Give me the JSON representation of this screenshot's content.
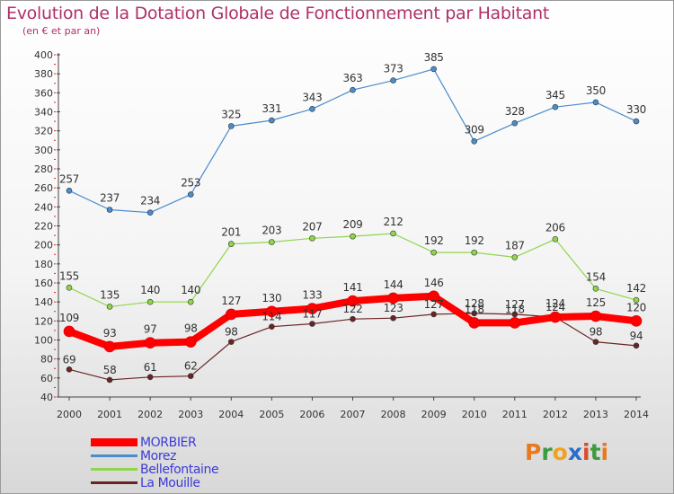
{
  "title": "Evolution de la Dotation Globale de Fonctionnement par Habitant",
  "subtitle": "(en € et par an)",
  "logo": {
    "letters": [
      "P",
      "r",
      "o",
      "x",
      "i",
      "t",
      "i"
    ],
    "colors": [
      "#e8791f",
      "#3f9b3f",
      "#f0a21f",
      "#2a6ec9",
      "#d94d2a",
      "#3f9b3f",
      "#e8791f"
    ]
  },
  "chart_data": {
    "type": "line",
    "x": [
      "2000",
      "2001",
      "2002",
      "2003",
      "2004",
      "2005",
      "2006",
      "2007",
      "2008",
      "2009",
      "2010",
      "2011",
      "2012",
      "2013",
      "2014"
    ],
    "ylim": [
      40,
      400
    ],
    "yticks": [
      40,
      60,
      80,
      100,
      120,
      140,
      160,
      180,
      200,
      220,
      240,
      260,
      280,
      300,
      320,
      340,
      360,
      380,
      400
    ],
    "grid": false,
    "legend_position": "bottom-left",
    "series": [
      {
        "name": "MORBIER",
        "color": "#ff0000",
        "values": [
          109,
          93,
          97,
          98,
          127,
          130,
          133,
          141,
          144,
          146,
          118,
          118,
          124,
          125,
          120
        ]
      },
      {
        "name": "Morez",
        "color": "#4a8ccc",
        "values": [
          257,
          237,
          234,
          253,
          325,
          331,
          343,
          363,
          373,
          385,
          309,
          328,
          345,
          350,
          330
        ]
      },
      {
        "name": "Bellefontaine",
        "color": "#8fd64a",
        "values": [
          155,
          135,
          140,
          140,
          201,
          203,
          207,
          209,
          212,
          192,
          192,
          187,
          206,
          154,
          142
        ]
      },
      {
        "name": "La Mouille",
        "color": "#6b2424",
        "values": [
          69,
          58,
          61,
          62,
          98,
          114,
          117,
          122,
          123,
          127,
          128,
          127,
          124,
          98,
          94
        ]
      }
    ]
  }
}
